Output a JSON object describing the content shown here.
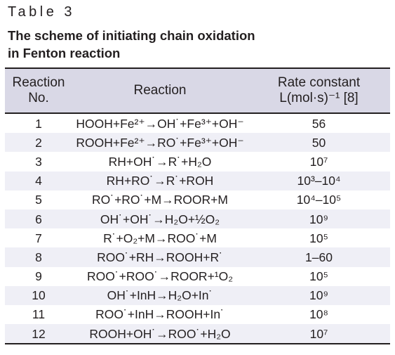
{
  "table_label": "Table 3",
  "caption_line1": "The scheme of initiating chain oxidation",
  "caption_line2": "in Fenton reaction",
  "headers": {
    "no_line1": "Reaction",
    "no_line2": "No.",
    "reaction": "Reaction",
    "rate_line1": "Rate constant",
    "rate_line2": "L(mol·s)⁻¹ [8]"
  },
  "rows": [
    {
      "no": "1",
      "reaction": "HOOH+Fe²⁺→OH˙+Fe³⁺+OH⁻",
      "rate": "56"
    },
    {
      "no": "2",
      "reaction": "ROOH+Fe²⁺→RO˙+Fe³⁺+OH⁻",
      "rate": "50"
    },
    {
      "no": "3",
      "reaction": "RH+OH˙→R˙+H₂O",
      "rate": "10⁷"
    },
    {
      "no": "4",
      "reaction": "RH+RO˙→R˙+ROH",
      "rate": "10³–10⁴"
    },
    {
      "no": "5",
      "reaction": "RO˙+RO˙+M→ROOR+M",
      "rate": "10⁴–10⁵"
    },
    {
      "no": "6",
      "reaction": "OH˙+OH˙→H₂O+½O₂",
      "rate": "10⁹"
    },
    {
      "no": "7",
      "reaction": "R˙+O₂+M→ROO˙+M",
      "rate": "10⁵"
    },
    {
      "no": "8",
      "reaction": "ROO˙+RH→ROOH+R˙",
      "rate": "1–60"
    },
    {
      "no": "9",
      "reaction": "ROO˙+ROO˙→ROOR+¹O₂",
      "rate": "10⁵"
    },
    {
      "no": "10",
      "reaction": "OH˙+InH→H₂O+In˙",
      "rate": "10⁹"
    },
    {
      "no": "11",
      "reaction": "ROO˙+InH→ROOH+In˙",
      "rate": "10⁸"
    },
    {
      "no": "12",
      "reaction": "ROOH+OH˙→ROO˙+H₂O",
      "rate": "10⁷"
    }
  ]
}
